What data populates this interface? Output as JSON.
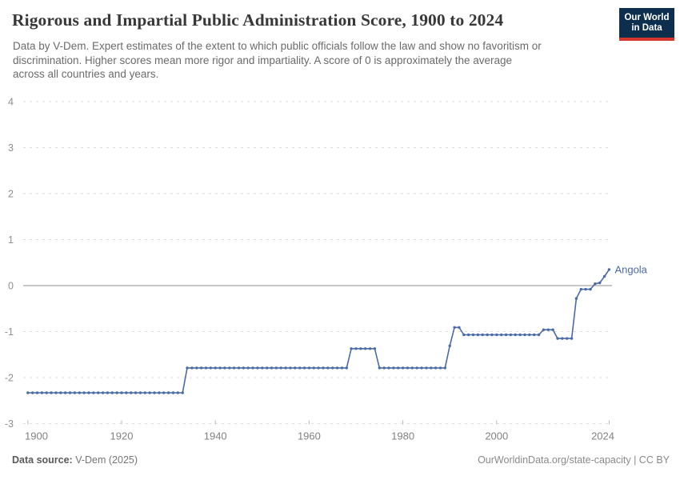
{
  "header": {
    "title": "Rigorous and Impartial Public Administration Score, 1900 to 2024",
    "subtitle_lines": [
      "Data by V-Dem. Expert estimates of the extent to which public officials follow the law and show no favoritism or",
      "discrimination. Higher scores mean more rigor and impartiality. A score of 0 is approximately the average",
      "across all countries and years."
    ]
  },
  "logo": {
    "line1": "Our World",
    "line2": "in Data",
    "bg_color": "#0e2e4e",
    "accent_color": "#d5372d"
  },
  "chart_data": {
    "type": "line",
    "title": "Rigorous and Impartial Public Administration Score, 1900 to 2024",
    "xlabel": "",
    "ylabel": "",
    "xlim": [
      1900,
      2024
    ],
    "ylim": [
      -3,
      4
    ],
    "grid": "horizontal-dashed",
    "legend_position": "end-of-line",
    "x_ticks": [
      1900,
      1920,
      1940,
      1960,
      1980,
      2000,
      2024
    ],
    "y_ticks": [
      4,
      3,
      2,
      1,
      0,
      -1,
      -2,
      -3
    ],
    "line_color": "#4a6ba8",
    "zero_line_color": "#a8a8a8",
    "gridline_color": "#dcdcdc",
    "series": [
      {
        "name": "Angola",
        "segments": [
          {
            "years": [
              1900,
              1933
            ],
            "value": -2.33
          },
          {
            "years": [
              1934,
              1968
            ],
            "value": -1.79
          },
          {
            "years": [
              1969,
              1974
            ],
            "value": -1.37
          },
          {
            "years": [
              1975,
              1989
            ],
            "value": -1.79
          },
          {
            "years": [
              1990,
              1990
            ],
            "value": -1.31
          },
          {
            "years": [
              1991,
              1992
            ],
            "value": -0.91
          },
          {
            "years": [
              1993,
              2009
            ],
            "value": -1.07
          },
          {
            "years": [
              2010,
              2012
            ],
            "value": -0.96
          },
          {
            "years": [
              2013,
              2016
            ],
            "value": -1.15
          },
          {
            "years": [
              2017,
              2017
            ],
            "value": -0.28
          },
          {
            "years": [
              2018,
              2020
            ],
            "value": -0.08
          },
          {
            "years": [
              2021,
              2021
            ],
            "value": 0.04
          },
          {
            "years": [
              2022,
              2022
            ],
            "value": 0.06
          },
          {
            "years": [
              2023,
              2023
            ],
            "value": 0.2
          },
          {
            "years": [
              2024,
              2024
            ],
            "value": 0.35
          }
        ]
      }
    ]
  },
  "footer": {
    "data_source_label": "Data source:",
    "data_source_value": "V-Dem (2025)",
    "credit": "OurWorldinData.org/state-capacity | CC BY"
  }
}
